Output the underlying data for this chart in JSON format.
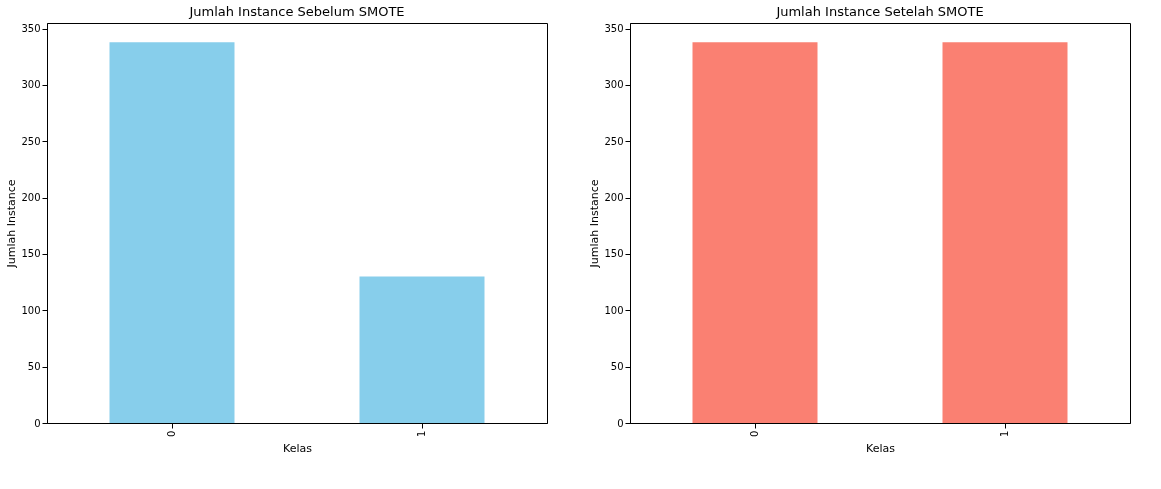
{
  "chart_data": [
    {
      "type": "bar",
      "title": "Jumlah Instance Sebelum SMOTE",
      "xlabel": "Kelas",
      "ylabel": "Jumlah Instance",
      "categories": [
        "0",
        "1"
      ],
      "values": [
        338,
        130
      ],
      "color": "#87ceeb",
      "ylim": [
        0,
        355
      ],
      "yticks": [
        0,
        50,
        100,
        150,
        200,
        250,
        300,
        350
      ],
      "grid": false
    },
    {
      "type": "bar",
      "title": "Jumlah Instance Setelah SMOTE",
      "xlabel": "Kelas",
      "ylabel": "Jumlah Instance",
      "categories": [
        "0",
        "1"
      ],
      "values": [
        338,
        338
      ],
      "color": "#fa8072",
      "ylim": [
        0,
        355
      ],
      "yticks": [
        0,
        50,
        100,
        150,
        200,
        250,
        300,
        350
      ],
      "grid": false
    }
  ]
}
